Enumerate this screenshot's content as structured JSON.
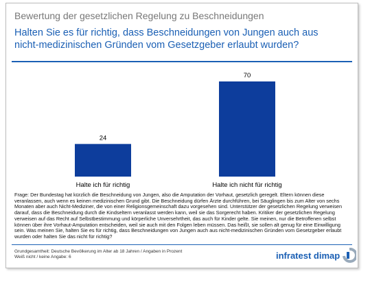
{
  "chart_data": {
    "type": "bar",
    "title": "Bewertung der gesetzlichen Regelung zu Beschneidungen",
    "subtitle": [
      "Halten Sie es für richtig, dass Beschneidungen von Jungen auch aus",
      "nicht-medizinischen Gründen vom Gesetzgeber erlaubt wurden?"
    ],
    "categories": [
      "Halte ich für richtig",
      "Halte ich nicht für richtig"
    ],
    "values": [
      24,
      70
    ],
    "color": "#0d3d9c"
  },
  "note": "Frage: Der Bundestag hat kürzlich die Beschneidung von Jungen, also die Amputation der Vorhaut, gesetzlich geregelt. Eltern können diese veranlassen, auch wenn es keinen medizinischen Grund gibt. Die Beschneidung dürfen Ärzte durchführen, bei Säuglingen bis zum Alter von sechs Monaten aber auch Nicht-Mediziner, die von einer Religionsgemeinschaft dazu vorgesehen sind. Unterstützer der gesetzlichen Regelung verweisen darauf, dass die Beschneidung durch die Kindseltern veranlasst werden kann, weil sie das Sorgerecht haben. Kritiker der gesetzlichen Regelung verweisen auf das Recht auf Selbstbestimmung und körperliche Unversehrtheit, das auch für Kinder gelte. Sie meinen, nur die Betroffenen selbst können über ihre Vorhaut-Amputation entscheiden, weil sie auch mit den Folgen leben müssen. Das heißt, sie sollen alt genug für eine Einwilligung sein. Was meinen Sie, halten Sie es für richtig, dass Beschneidungen von Jungen auch aus nicht-medizinischen Gründen vom Gesetzgeber erlaubt wurden oder halten Sie das nicht für richtig?",
  "footer": {
    "lines": [
      "Grundgesamtheit: Deutsche Bevölkerung im Alter ab 18 Jahren / Angaben in Prozent",
      "Weiß nicht / keine Angabe: 6"
    ],
    "brand": "infratest dimap"
  }
}
